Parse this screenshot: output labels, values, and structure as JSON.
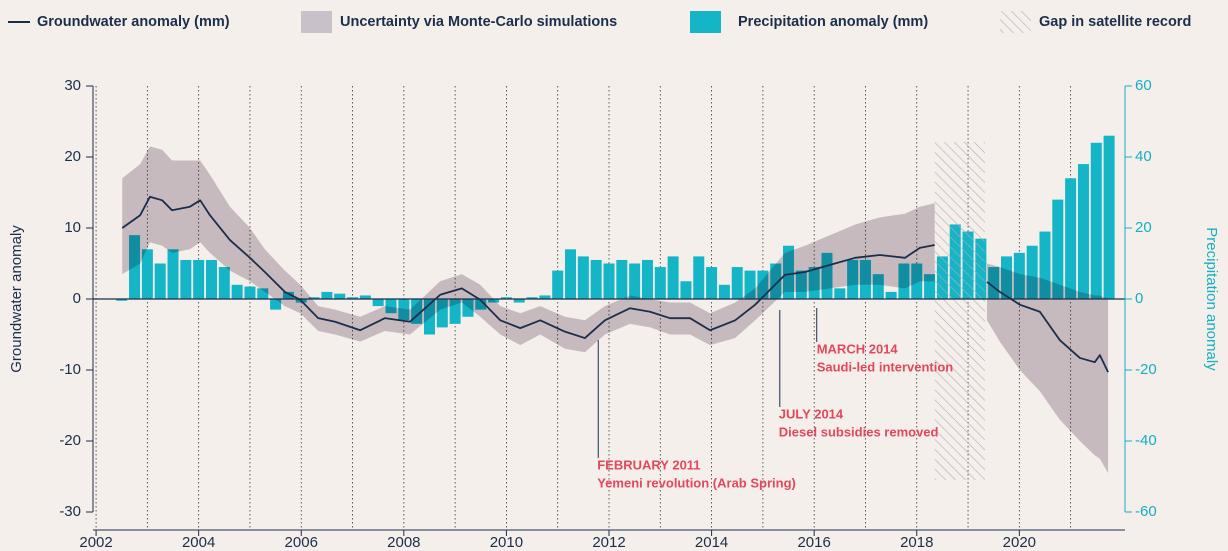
{
  "chart_data": {
    "type": "line",
    "xlim": [
      2001.94,
      2022.06
    ],
    "xticks": [
      2002,
      2004,
      2006,
      2008,
      2010,
      2012,
      2014,
      2016,
      2018,
      2020
    ],
    "minor_xticks": [
      2003,
      2005,
      2007,
      2009,
      2011,
      2013,
      2015,
      2017,
      2019,
      2021
    ],
    "grid": "x",
    "ylim": [
      -30,
      30
    ],
    "yticks": [
      -30,
      -20,
      -10,
      0,
      10,
      20,
      30
    ],
    "y2lim": [
      -60,
      60
    ],
    "y2ticks": [
      -60,
      -40,
      -20,
      0,
      20,
      40,
      60
    ],
    "ylabel": "Groundwater anomaly",
    "y2label": "Precipitation anomaly",
    "y2color": "#12b0c4",
    "legend": "top",
    "series": [
      {
        "name": "Groundwater anomaly (mm)",
        "type": "line",
        "color": "#1b2e4b",
        "x": [
          2002.51,
          2002.86,
          2003.05,
          2003.29,
          2003.48,
          2003.83,
          2004.03,
          2004.22,
          2004.61,
          2005.0,
          2005.29,
          2005.68,
          2005.98,
          2006.33,
          2006.66,
          2007.15,
          2007.63,
          2008.12,
          2008.71,
          2009.13,
          2009.49,
          2009.88,
          2010.27,
          2010.66,
          2011.14,
          2011.53,
          2011.92,
          2012.41,
          2012.8,
          2013.19,
          2013.58,
          2013.97,
          2014.46,
          2014.85,
          2015.14,
          2015.43,
          2015.82,
          2016.31,
          2016.8,
          2017.28,
          2017.77,
          2018.06,
          2018.35,
          2018.84,
          2019.37,
          2019.62,
          2020.01,
          2020.4,
          2020.79,
          2021.18,
          2021.47,
          2021.57,
          2021.73
        ],
        "values": [
          10,
          11.8,
          14.4,
          13.9,
          12.5,
          13,
          13.9,
          11.8,
          8.3,
          5.8,
          3.8,
          1,
          -0.1,
          -2.7,
          -3.2,
          -4.4,
          -2.7,
          -3.2,
          0.6,
          1.5,
          -0.1,
          -3,
          -4.1,
          -3,
          -4.6,
          -5.5,
          -3,
          -1.3,
          -1.8,
          -2.7,
          -2.7,
          -4.4,
          -3,
          -0.8,
          1.3,
          3.4,
          3.8,
          4.8,
          5.8,
          6.2,
          5.8,
          7.2,
          7.6,
          null,
          2.4,
          1,
          -0.8,
          -1.8,
          -5.8,
          -8.3,
          -8.9,
          -7.9,
          -10.3
        ]
      },
      {
        "name": "Uncertainty via Monte-Carlo simulations",
        "type": "band",
        "color": "#c9c1c9",
        "x": [
          2002.51,
          2002.86,
          2003.05,
          2003.29,
          2003.48,
          2003.83,
          2004.03,
          2004.22,
          2004.61,
          2005.0,
          2005.29,
          2005.68,
          2005.98,
          2006.33,
          2006.66,
          2007.15,
          2007.63,
          2008.12,
          2008.71,
          2009.13,
          2009.49,
          2009.88,
          2010.27,
          2010.66,
          2011.14,
          2011.53,
          2011.92,
          2012.41,
          2012.8,
          2013.19,
          2013.58,
          2013.97,
          2014.46,
          2014.85,
          2015.14,
          2015.43,
          2015.82,
          2016.31,
          2016.8,
          2017.28,
          2017.77,
          2018.06,
          2018.35,
          2018.84,
          2019.37,
          2019.62,
          2020.01,
          2020.4,
          2020.79,
          2021.18,
          2021.47,
          2021.57,
          2021.73
        ],
        "upper": [
          17,
          19,
          21.5,
          21,
          19.5,
          19.5,
          19.5,
          17.5,
          13,
          10,
          7,
          4,
          2,
          -1,
          -1.5,
          -2.5,
          -1,
          -1.5,
          2.5,
          3.5,
          2,
          -1,
          -2,
          -1,
          -2.5,
          -3,
          -1,
          0.5,
          0,
          -0.5,
          -0.5,
          -2,
          -0.5,
          1.5,
          4,
          6.5,
          7.5,
          9,
          10.5,
          11.5,
          12,
          13,
          13.5,
          null,
          5,
          4.5,
          3.5,
          3,
          2,
          1,
          0.5,
          0.5,
          0
        ],
        "lower": [
          3.5,
          5,
          8,
          7.5,
          6.5,
          7,
          8,
          6.5,
          4,
          2.5,
          1,
          -1,
          -2,
          -4.5,
          -5,
          -6,
          -4.5,
          -5,
          -1.5,
          -0.5,
          -2.5,
          -5,
          -6.5,
          -5,
          -7,
          -7.5,
          -5,
          -3.5,
          -4,
          -5,
          -5,
          -6.5,
          -5.5,
          -3,
          -1,
          1,
          1,
          1.5,
          2,
          2,
          1.5,
          2.5,
          2.5,
          null,
          -3,
          -6,
          -10,
          -13,
          -17,
          -20,
          -22,
          -22.5,
          -24.5
        ]
      },
      {
        "name": "Precipitation anomaly (mm)",
        "type": "bar",
        "axis": "y2",
        "color": "#13b5c7",
        "x": [
          2002.5,
          2002.75,
          2003.0,
          2003.25,
          2003.5,
          2003.75,
          2004.0,
          2004.25,
          2004.5,
          2004.75,
          2005.0,
          2005.25,
          2005.5,
          2005.75,
          2006.0,
          2006.25,
          2006.5,
          2006.75,
          2007.0,
          2007.25,
          2007.5,
          2007.75,
          2008.0,
          2008.25,
          2008.5,
          2008.75,
          2009.0,
          2009.25,
          2009.5,
          2009.75,
          2010.0,
          2010.25,
          2010.5,
          2010.75,
          2011.0,
          2011.25,
          2011.5,
          2011.75,
          2012.0,
          2012.25,
          2012.5,
          2012.75,
          2013.0,
          2013.25,
          2013.5,
          2013.75,
          2014.0,
          2014.25,
          2014.5,
          2014.75,
          2015.0,
          2015.25,
          2015.5,
          2015.75,
          2016.0,
          2016.25,
          2016.5,
          2016.75,
          2017.0,
          2017.25,
          2017.5,
          2017.75,
          2018.0,
          2018.25,
          2018.5,
          2018.75,
          2019.0,
          2019.25,
          2019.5,
          2019.75,
          2020.0,
          2020.25,
          2020.5,
          2020.75,
          2021.0,
          2021.25,
          2021.5,
          2021.75
        ],
        "values": [
          -0.5,
          18,
          14,
          10,
          14,
          11,
          11,
          11,
          9,
          4,
          3.5,
          3,
          -3,
          2,
          -1,
          0.5,
          2,
          1.5,
          0.5,
          1,
          -2,
          -4,
          -6,
          -7,
          -10,
          -8,
          -7,
          -5,
          -3,
          -1,
          0.5,
          -1,
          0.5,
          1,
          8,
          14,
          12,
          11,
          10,
          11,
          10,
          11,
          9,
          12,
          5,
          12,
          9,
          4,
          9,
          8,
          8,
          10,
          15,
          8,
          9,
          13,
          3,
          11,
          11,
          7,
          2,
          10,
          10,
          7,
          12,
          21,
          19,
          17,
          9,
          12,
          13,
          15,
          19,
          28,
          34,
          38,
          44,
          46
        ]
      }
    ],
    "gap": {
      "name": "Gap in satellite record",
      "start": 2018.35,
      "end": 2019.33
    },
    "annotations": [
      {
        "x": 2011.79,
        "title": "FEBRUARY 2011",
        "text": "Yemeni revolution (Arab Spring)"
      },
      {
        "x": 2015.33,
        "title": "JULY 2014",
        "text": "Diesel subsidies removed"
      },
      {
        "x": 2016.05,
        "title": "MARCH 2014",
        "text": "Saudi-led intervention"
      }
    ]
  }
}
